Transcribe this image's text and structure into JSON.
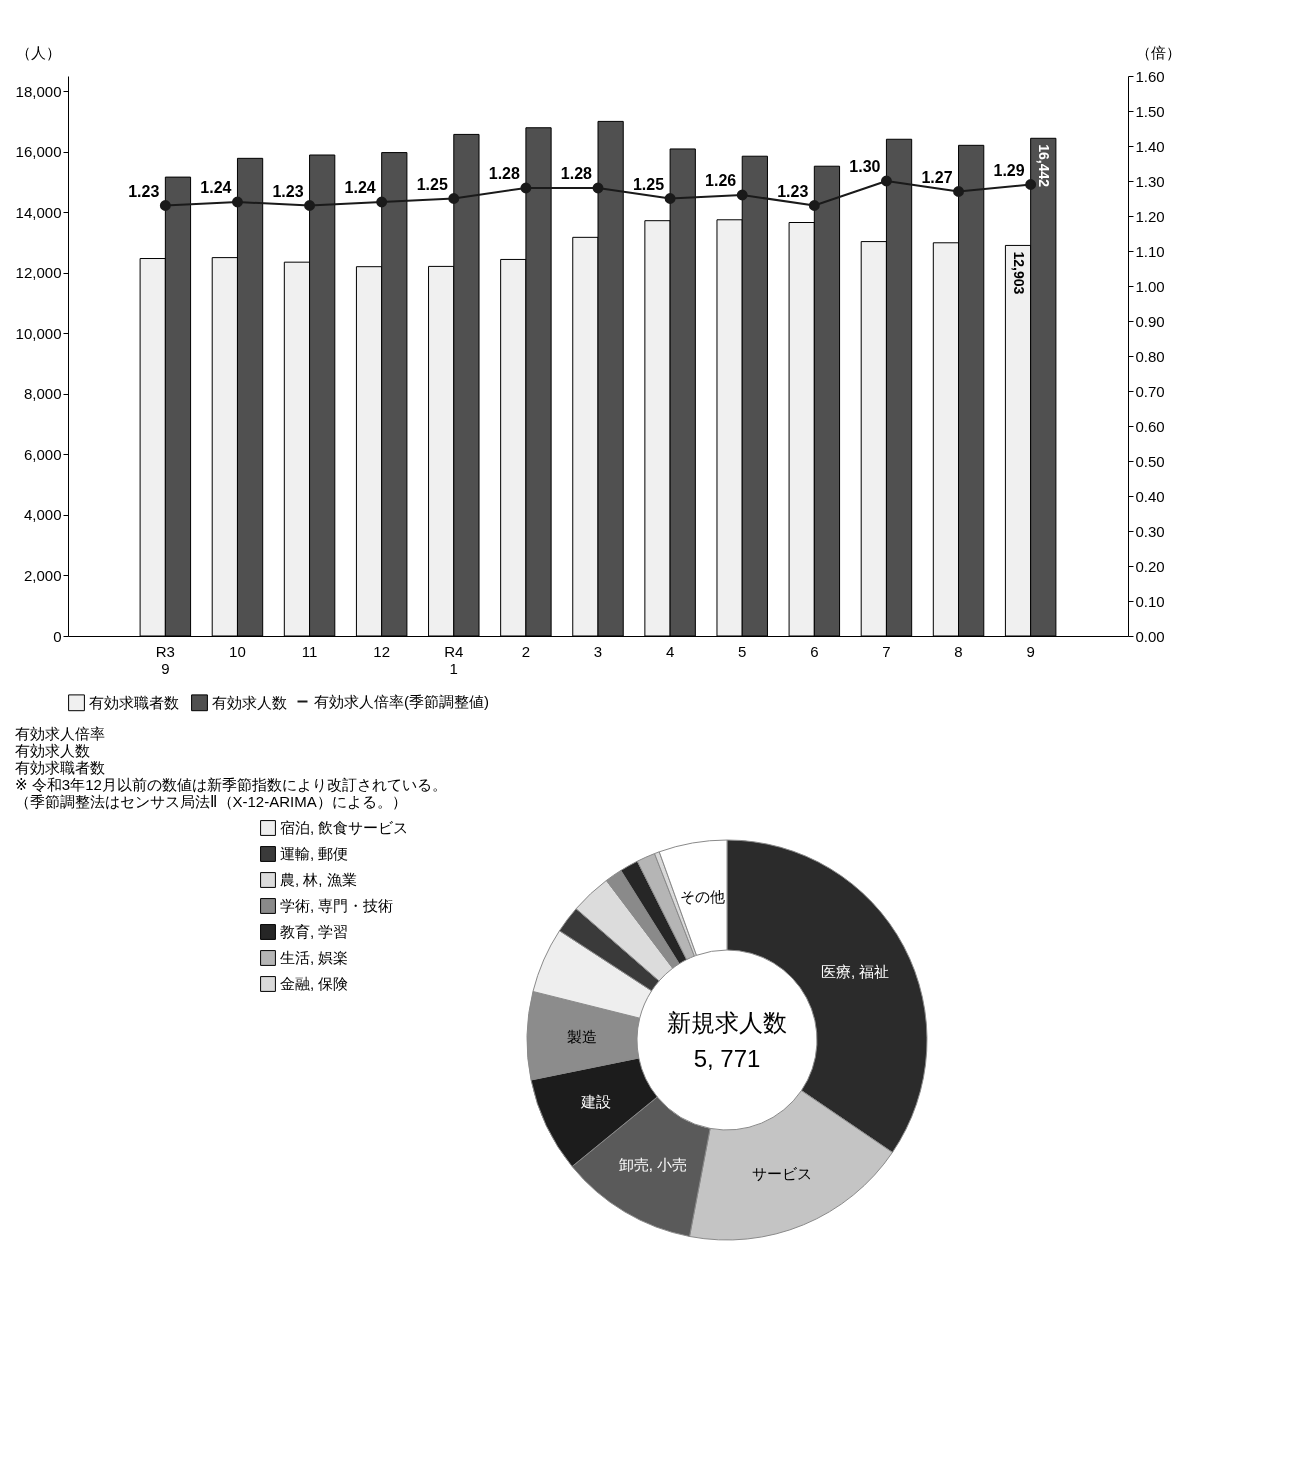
{
  "chart_data": [
    {
      "type": "bar",
      "categories": [
        "R3\n9",
        "10",
        "11",
        "12",
        "R4\n1",
        "2",
        "3",
        "4",
        "5",
        "6",
        "7",
        "8",
        "9"
      ],
      "series": [
        {
          "name": "有効求職者数",
          "color": "#f0f0f0",
          "values": [
            12470,
            12500,
            12350,
            12200,
            12210,
            12440,
            13170,
            13720,
            13750,
            13660,
            13030,
            12990,
            12903
          ],
          "value_labels": [
            null,
            null,
            null,
            null,
            null,
            null,
            null,
            null,
            null,
            null,
            null,
            null,
            "12,903"
          ]
        },
        {
          "name": "有効求人数",
          "color": "#505050",
          "values": [
            15160,
            15780,
            15890,
            15970,
            16570,
            16790,
            17000,
            16090,
            15850,
            15520,
            16410,
            16210,
            16442
          ],
          "value_labels": [
            null,
            null,
            null,
            null,
            null,
            null,
            null,
            null,
            null,
            null,
            null,
            null,
            "16,442"
          ]
        },
        {
          "name": "有効求人倍率(季節調整値)",
          "type": "line",
          "axis": "y2",
          "color": "#1a1a1a",
          "values": [
            1.23,
            1.24,
            1.23,
            1.24,
            1.25,
            1.28,
            1.28,
            1.25,
            1.26,
            1.23,
            1.3,
            1.27,
            1.29
          ],
          "value_labels": [
            "1.23",
            "1.24",
            "1.23",
            "1.24",
            "1.25",
            "1.28",
            "1.28",
            "1.25",
            "1.26",
            "1.23",
            "1.30",
            "1.27",
            "1.29"
          ]
        }
      ],
      "ylabel": "（人）",
      "y2label": "（倍）",
      "ylim": [
        0,
        18500
      ],
      "yticks": [
        0,
        {
          "value": 2000,
          "label": "2,000"
        },
        {
          "value": 4000,
          "label": "4,000"
        },
        {
          "value": 6000,
          "label": "6,000"
        },
        {
          "value": 8000,
          "label": "8,000"
        },
        {
          "value": 10000,
          "label": "10,000"
        },
        {
          "value": 12000,
          "label": "12,000"
        },
        {
          "value": 14000,
          "label": "14,000"
        },
        {
          "value": 16000,
          "label": "16,000"
        },
        {
          "value": 18000,
          "label": "18,000"
        }
      ],
      "y2lim": [
        0,
        1.6
      ],
      "y2ticks": [
        {
          "value": 0,
          "label": "0.00"
        },
        {
          "value": 0.1,
          "label": "0.10"
        },
        {
          "value": 0.2,
          "label": "0.20"
        },
        {
          "value": 0.3,
          "label": "0.30"
        },
        {
          "value": 0.4,
          "label": "0.40"
        },
        {
          "value": 0.5,
          "label": "0.50"
        },
        {
          "value": 0.6,
          "label": "0.60"
        },
        {
          "value": 0.7,
          "label": "0.70"
        },
        {
          "value": 0.8,
          "label": "0.80"
        },
        {
          "value": 0.9,
          "label": "0.90"
        },
        {
          "value": 1.0,
          "label": "1.00"
        },
        {
          "value": 1.1,
          "label": "1.10"
        },
        {
          "value": 1.2,
          "label": "1.20"
        },
        {
          "value": 1.3,
          "label": "1.30"
        },
        {
          "value": 1.4,
          "label": "1.40"
        },
        {
          "value": 1.5,
          "label": "1.50"
        },
        {
          "value": 1.6,
          "label": "1.60"
        }
      ],
      "legend": "bottom",
      "marker": "circle",
      "line_style": "solid",
      "annotations": [
        "有効求人倍率",
        "有効求人数",
        "有効求職者数",
        "※ 令和3年12月以前の数値は新季節指数により改訂されている。",
        "（季節調整法はセンサス局法Ⅱ（X-12-ARIMA）による。）"
      ]
    },
    {
      "type": "donut",
      "legend": "left",
      "title": "新規求人数",
      "subtitle": "5, 771",
      "categories": [
        "医療, 福祉",
        "サービス",
        "卸売, 小売",
        "建設",
        "製造",
        "宿泊, 飲食サービス",
        "運輸, 郵便",
        "農, 林, 漁業",
        "学術, 専門・技術",
        "教育, 学習",
        "生活, 娯楽",
        "金融, 保険",
        "その他"
      ],
      "values": [
        34.5,
        18.5,
        11.1,
        7.7,
        7.1,
        5.3,
        2.2,
        3.3,
        1.4,
        1.5,
        1.5,
        0.4,
        5.5
      ],
      "colors": [
        "#2b2b2b",
        "#c4c4c4",
        "#5a5a5a",
        "#1c1c1c",
        "#8c8c8c",
        "#eeeeee",
        "#3a3a3a",
        "#dcdcdc",
        "#8a8a8a",
        "#262626",
        "#b5b5b5",
        "#d9d9d9",
        "#ffffff"
      ]
    }
  ]
}
